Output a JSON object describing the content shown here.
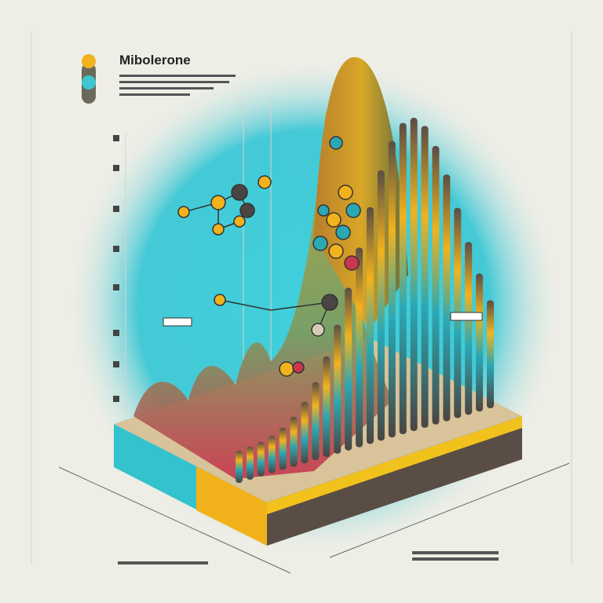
{
  "header": {
    "title": "Mibolerone"
  }
}
